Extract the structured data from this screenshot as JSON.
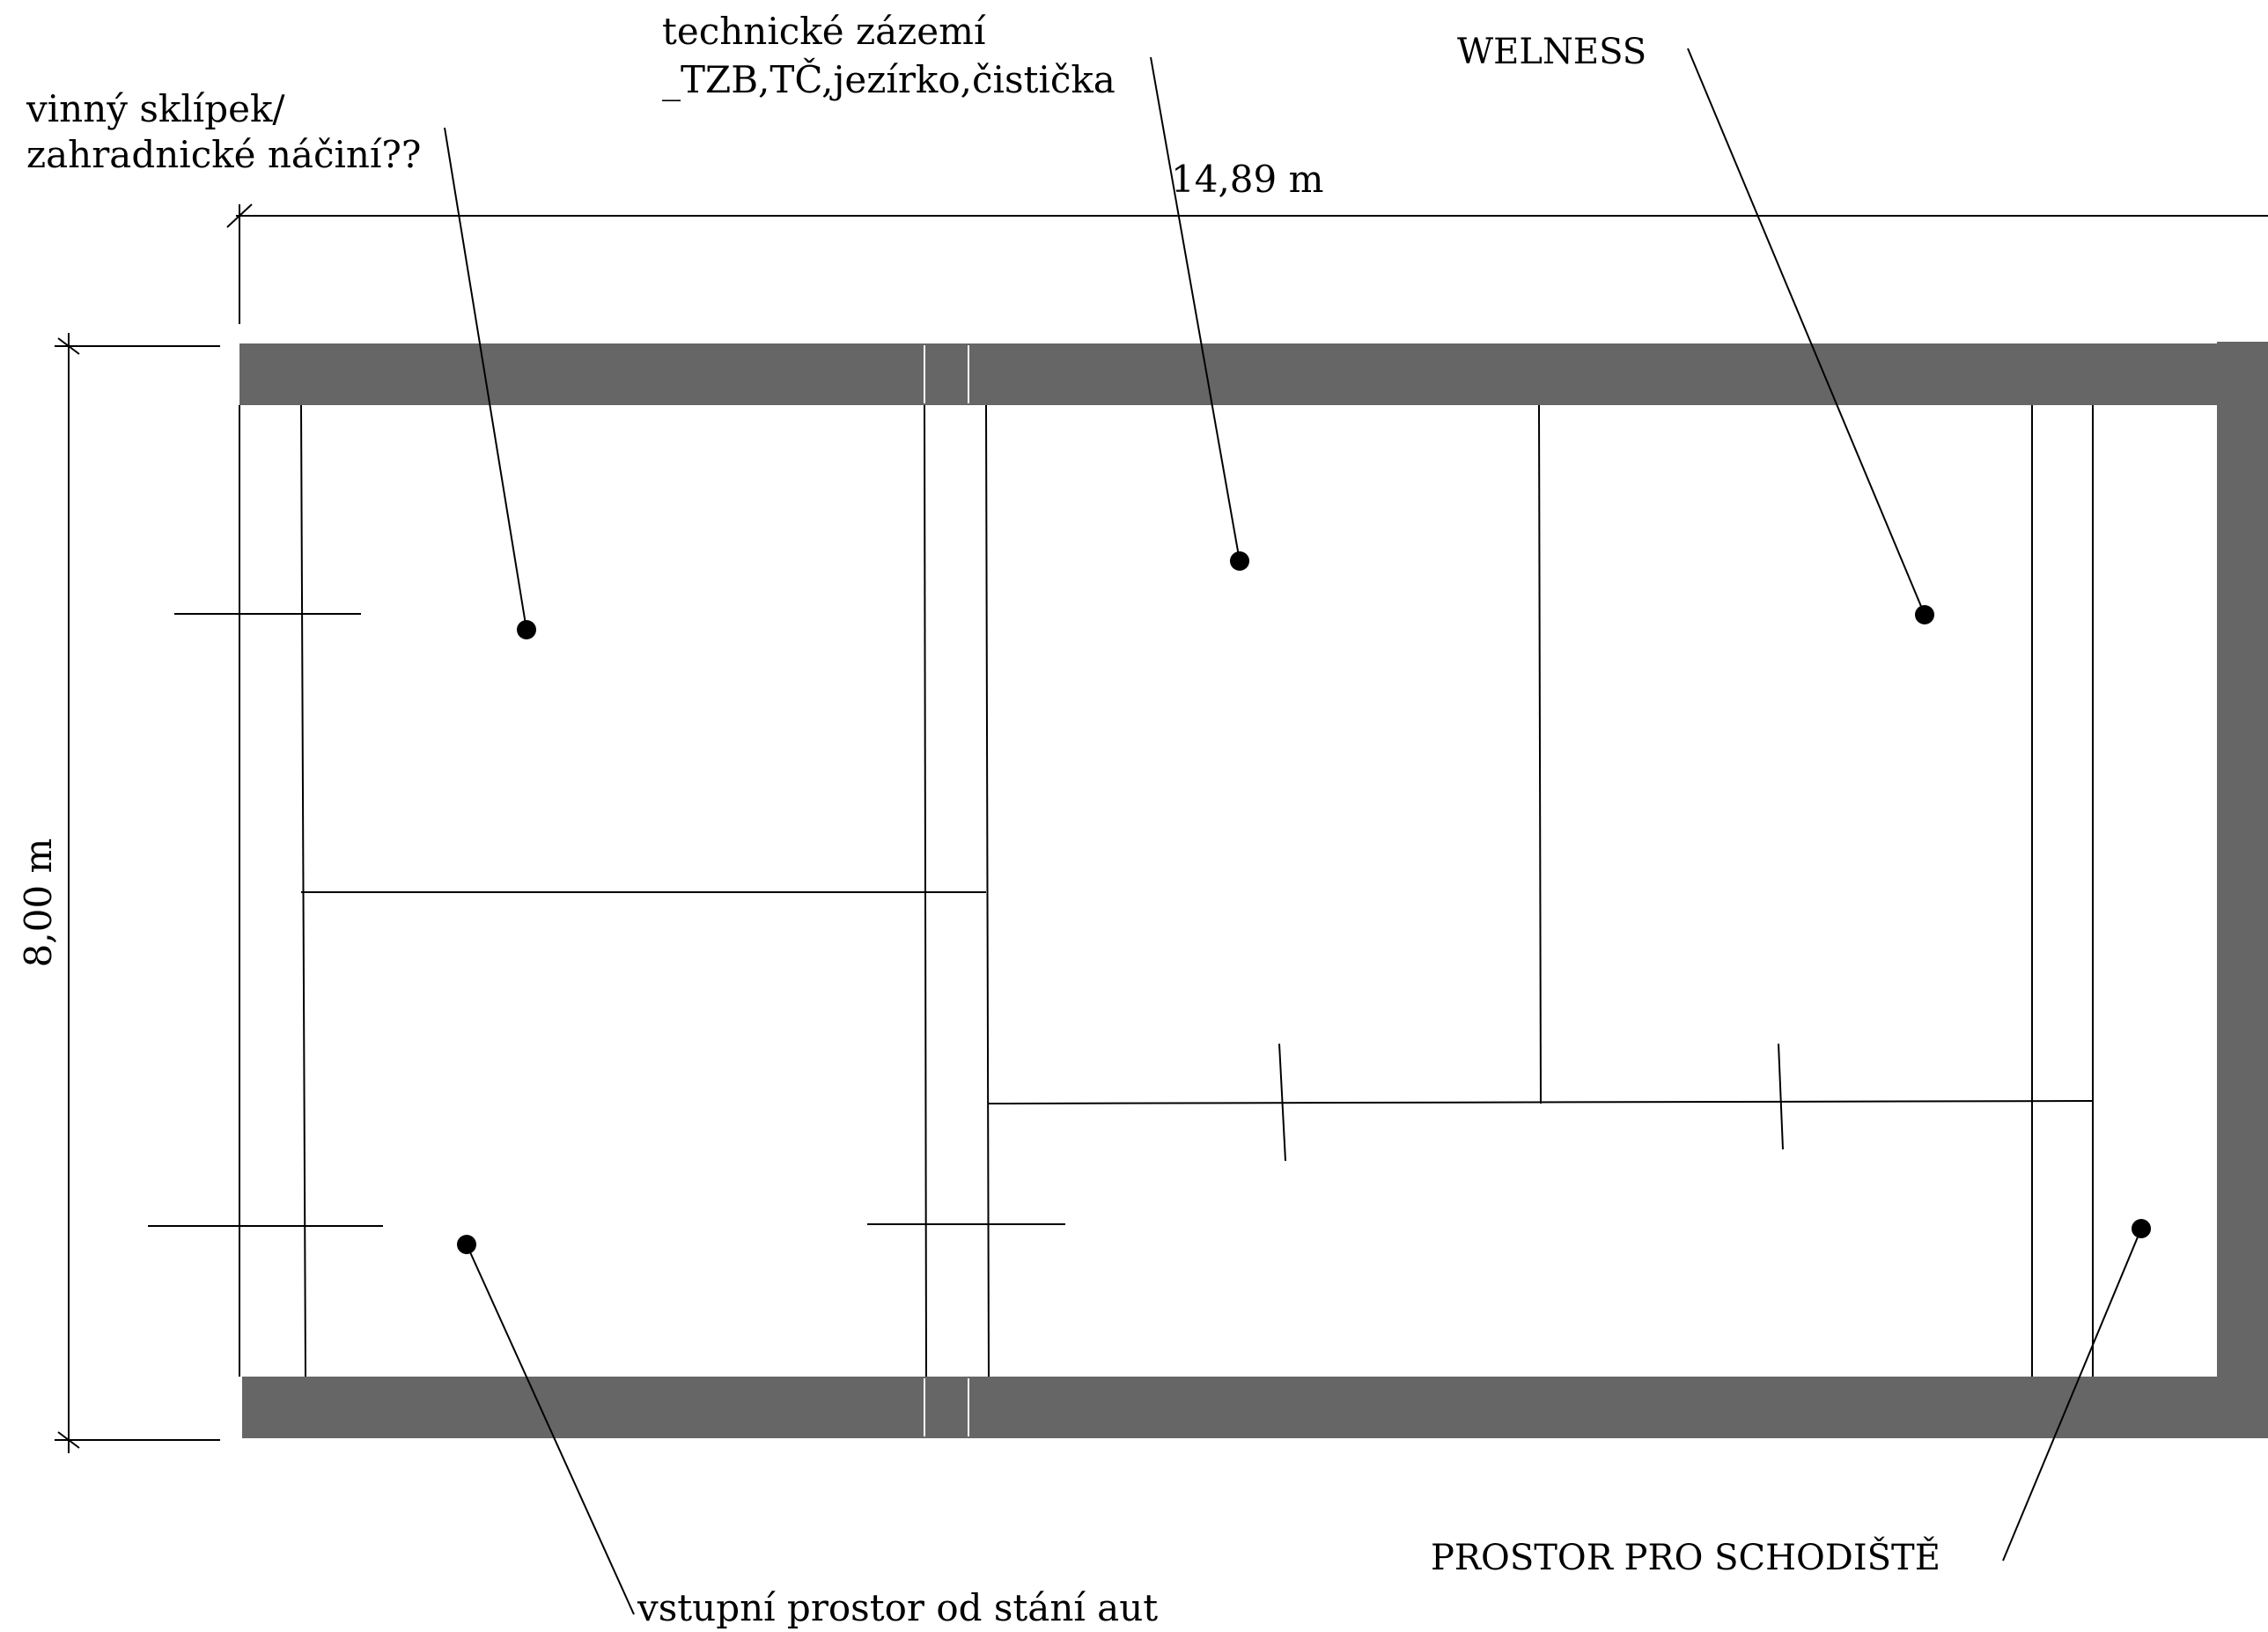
{
  "dimensions": {
    "width_label": "14,89 m",
    "height_label": "8,00 m"
  },
  "labels": {
    "wine_cellar_line1": "vinný sklípek/",
    "wine_cellar_line2": "zahradnické náčiní??",
    "technical_line1": "technické zázemí",
    "technical_line2": "_TZB,TČ,jezírko,čistička",
    "wellness": "WELNESS",
    "entrance": "vstupní prostor od stání aut",
    "staircase": "PROSTOR PRO SCHODIŠTĚ"
  },
  "colors": {
    "wall": "#666666",
    "line": "#000000",
    "background": "#ffffff"
  }
}
